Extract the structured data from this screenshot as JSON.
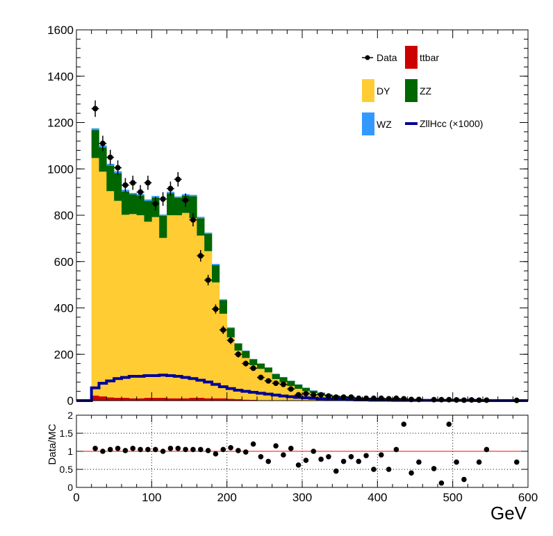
{
  "chart_data": [
    {
      "type": "histogram-stack",
      "xlim": [
        0,
        600
      ],
      "ylim": [
        0,
        1600
      ],
      "bin_width": 10,
      "bin_start": 20,
      "x_ticks": [
        "0",
        "100",
        "200",
        "300",
        "400",
        "500",
        "600"
      ],
      "y_ticks": [
        "0",
        "200",
        "400",
        "600",
        "800",
        "1000",
        "1200",
        "1400",
        "1600"
      ],
      "legend_position": "top-right",
      "legend": [
        {
          "name": "Data",
          "kind": "marker"
        },
        {
          "name": "ttbar",
          "kind": "fill",
          "color": "#cc0000"
        },
        {
          "name": "DY",
          "kind": "fill",
          "color": "#ffcc33"
        },
        {
          "name": "ZZ",
          "kind": "fill",
          "color": "#006600"
        },
        {
          "name": "WZ",
          "kind": "fill",
          "color": "#3399ff"
        },
        {
          "name": "ZllHcc (×1000)",
          "kind": "line",
          "color": "#000099"
        }
      ],
      "series": [
        {
          "name": "ttbar",
          "color": "#cc0000",
          "values": [
            22,
            18,
            14,
            12,
            12,
            10,
            10,
            12,
            12,
            12,
            10,
            10,
            10,
            12,
            12,
            10,
            10,
            10,
            8,
            6,
            4,
            3,
            2,
            2,
            1,
            1,
            1,
            1,
            1,
            1,
            0,
            0,
            0,
            0,
            0,
            0,
            0,
            0,
            0,
            0,
            0,
            0,
            0,
            0,
            0,
            0,
            0,
            0,
            0,
            0,
            0,
            0,
            0,
            0,
            0,
            0,
            0,
            0
          ]
        },
        {
          "name": "DY",
          "color": "#ffcc33",
          "values": [
            1025,
            970,
            890,
            850,
            790,
            795,
            790,
            760,
            780,
            690,
            790,
            790,
            800,
            775,
            700,
            635,
            500,
            365,
            265,
            210,
            180,
            150,
            135,
            120,
            92,
            78,
            62,
            50,
            40,
            32,
            24,
            18,
            14,
            12,
            10,
            8,
            7,
            6,
            6,
            5,
            5,
            4,
            4,
            3,
            3,
            3,
            2,
            2,
            2,
            2,
            2,
            2,
            2,
            1,
            1,
            1,
            1,
            1
          ]
        },
        {
          "name": "ZZ",
          "color": "#006600",
          "values": [
            120,
            105,
            110,
            120,
            100,
            85,
            85,
            90,
            85,
            95,
            95,
            75,
            75,
            95,
            75,
            75,
            75,
            58,
            40,
            30,
            30,
            25,
            22,
            20,
            22,
            22,
            22,
            18,
            14,
            10,
            10,
            8,
            7,
            7,
            6,
            6,
            5,
            5,
            4,
            4,
            4,
            3,
            3,
            3,
            3,
            2,
            2,
            2,
            2,
            2,
            2,
            2,
            1,
            1,
            1,
            1,
            1,
            1
          ]
        },
        {
          "name": "WZ",
          "color": "#3399ff",
          "values": [
            8,
            8,
            8,
            8,
            8,
            6,
            6,
            6,
            6,
            6,
            6,
            6,
            6,
            6,
            6,
            5,
            5,
            4,
            3,
            2,
            2,
            2,
            2,
            2,
            1,
            1,
            1,
            1,
            1,
            1,
            1,
            1,
            1,
            1,
            1,
            0,
            0,
            0,
            0,
            0,
            0,
            0,
            0,
            0,
            0,
            0,
            0,
            0,
            0,
            0,
            0,
            0,
            0,
            0,
            0,
            0,
            0,
            0
          ]
        },
        {
          "name": "ZllHcc (×1000)",
          "color": "#000099",
          "line": true,
          "values": [
            55,
            75,
            85,
            95,
            100,
            105,
            105,
            108,
            108,
            110,
            108,
            105,
            100,
            95,
            88,
            80,
            70,
            60,
            52,
            45,
            40,
            36,
            32,
            28,
            24,
            20,
            17,
            14,
            12,
            10,
            8,
            7,
            6,
            5,
            4,
            3,
            3,
            2,
            2,
            2,
            1,
            1,
            1,
            1,
            1,
            1,
            1,
            1,
            1,
            1,
            1,
            0,
            0,
            0,
            0,
            0,
            0,
            0
          ]
        }
      ],
      "data_points": {
        "name": "Data",
        "x": [
          25,
          35,
          45,
          55,
          65,
          75,
          85,
          95,
          105,
          115,
          125,
          135,
          145,
          155,
          165,
          175,
          185,
          195,
          205,
          215,
          225,
          235,
          245,
          255,
          265,
          275,
          285,
          295,
          305,
          315,
          325,
          335,
          345,
          355,
          365,
          375,
          385,
          395,
          405,
          415,
          425,
          435,
          445,
          455,
          475,
          485,
          495,
          505,
          515,
          525,
          535,
          545,
          585
        ],
        "y": [
          1260,
          1110,
          1050,
          1005,
          930,
          940,
          900,
          940,
          850,
          870,
          915,
          955,
          865,
          780,
          625,
          520,
          395,
          305,
          260,
          200,
          160,
          140,
          100,
          85,
          75,
          70,
          50,
          25,
          30,
          25,
          25,
          20,
          15,
          15,
          15,
          10,
          10,
          10,
          10,
          8,
          10,
          8,
          5,
          5,
          4,
          4,
          4,
          3,
          2,
          3,
          2,
          2,
          1
        ]
      }
    },
    {
      "type": "scatter",
      "ylabel": "Data/MC",
      "xlabel": "GeV",
      "xlim": [
        0,
        600
      ],
      "ylim": [
        0,
        2
      ],
      "x_ticks": [
        "0",
        "100",
        "200",
        "300",
        "400",
        "500",
        "600"
      ],
      "y_ticks": [
        "0",
        "0.5",
        "1",
        "1.5",
        "2"
      ],
      "reference_line": {
        "y": 1,
        "color": "#ff0000"
      },
      "grid": true,
      "points": {
        "x": [
          25,
          35,
          45,
          55,
          65,
          75,
          85,
          95,
          105,
          115,
          125,
          135,
          145,
          155,
          165,
          175,
          185,
          195,
          205,
          215,
          225,
          235,
          245,
          255,
          265,
          275,
          285,
          295,
          305,
          315,
          325,
          335,
          345,
          355,
          365,
          375,
          385,
          395,
          405,
          415,
          425,
          435,
          445,
          455,
          475,
          485,
          495,
          505,
          515,
          535,
          545,
          585
        ],
        "y": [
          1.08,
          1.0,
          1.05,
          1.08,
          1.02,
          1.08,
          1.05,
          1.05,
          1.05,
          1.0,
          1.08,
          1.08,
          1.05,
          1.05,
          1.05,
          1.02,
          0.93,
          1.05,
          1.1,
          1.02,
          0.98,
          1.2,
          0.85,
          0.72,
          1.15,
          0.9,
          1.08,
          0.62,
          0.75,
          1.0,
          0.78,
          0.85,
          0.45,
          0.72,
          0.85,
          0.72,
          0.88,
          0.5,
          0.9,
          0.5,
          1.05,
          1.75,
          0.4,
          0.7,
          0.52,
          0.12,
          1.75,
          0.7,
          0.22,
          0.7,
          1.05,
          0.7
        ]
      }
    }
  ]
}
